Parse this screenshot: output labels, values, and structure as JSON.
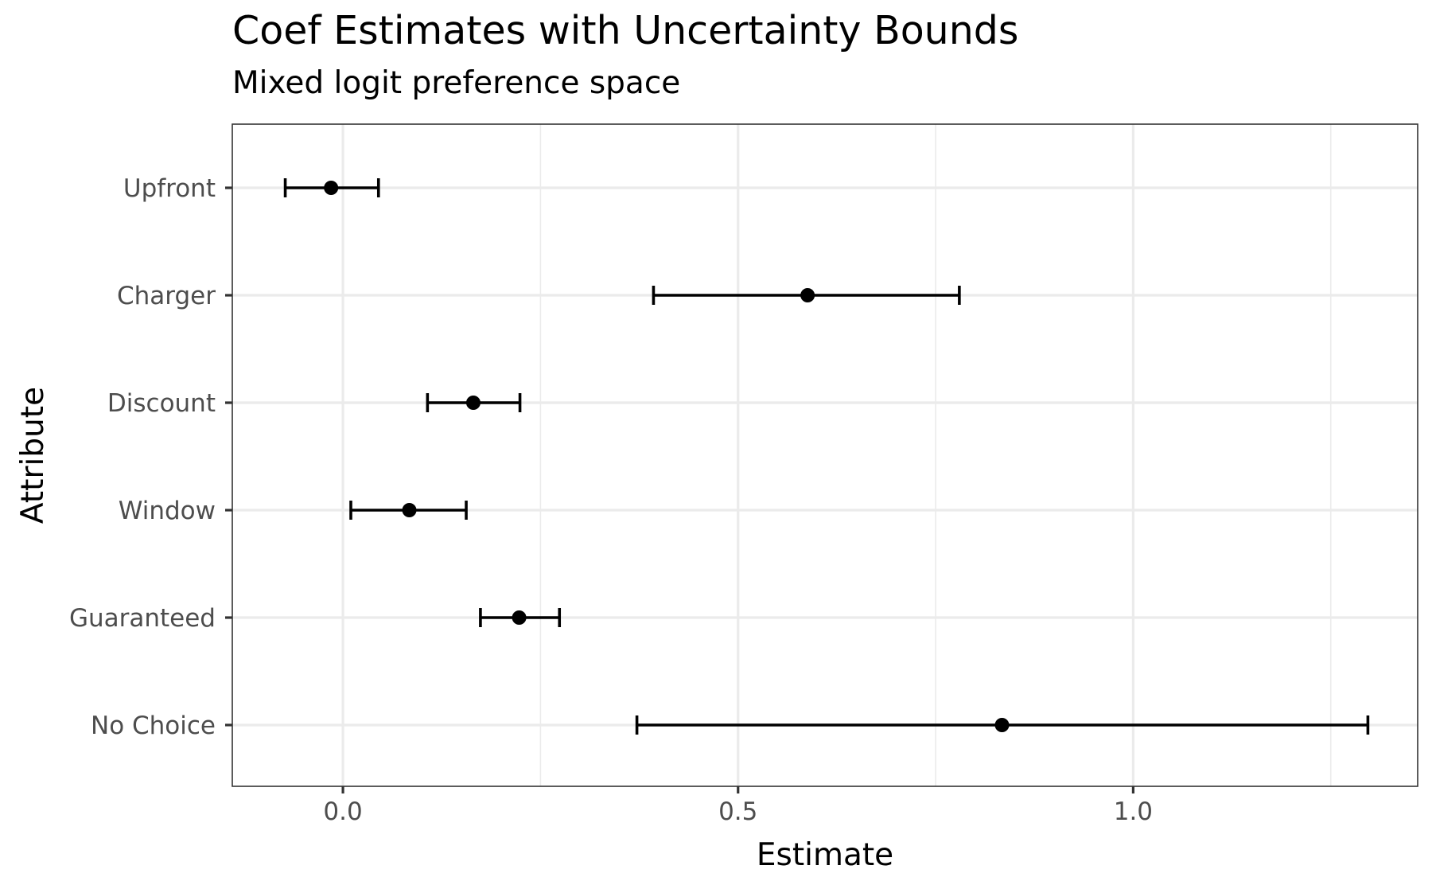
{
  "title": "Coef Estimates with Uncertainty Bounds",
  "subtitle": "Mixed logit preference space",
  "chart_data": {
    "type": "scatter",
    "subtype": "point-with-errorbars",
    "title": "Coef Estimates with Uncertainty Bounds",
    "subtitle": "Mixed logit preference space",
    "xlabel": "Estimate",
    "ylabel": "Attribute",
    "xlim": [
      -0.14,
      1.36
    ],
    "x_ticks": [
      0.0,
      0.5,
      1.0
    ],
    "x_tick_labels": [
      "0.0",
      "0.5",
      "1.0"
    ],
    "categories": [
      "Upfront",
      "Charger",
      "Discount",
      "Window",
      "Guaranteed",
      "No Choice"
    ],
    "estimates": [
      -0.015,
      0.588,
      0.165,
      0.084,
      0.223,
      0.834
    ],
    "lower": [
      -0.073,
      0.393,
      0.107,
      0.01,
      0.174,
      0.372
    ],
    "upper": [
      0.045,
      0.78,
      0.224,
      0.156,
      0.274,
      1.297
    ],
    "grid": true,
    "legend": "none",
    "colors": {
      "points": "#000000",
      "errorbars": "#000000",
      "grid": "#ebebeb",
      "panel_border": "#333333",
      "tick_labels": "#4d4d4d"
    }
  }
}
